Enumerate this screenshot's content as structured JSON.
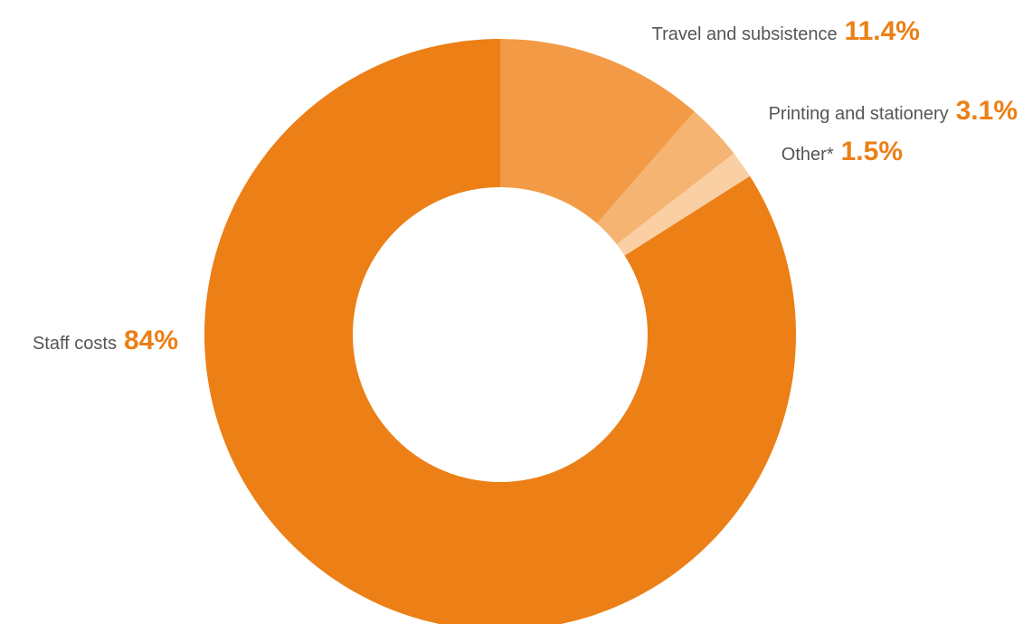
{
  "chart_data": {
    "type": "pie",
    "variant": "donut",
    "slices": [
      {
        "label": "Travel and subsistence",
        "value": 11.4,
        "value_label": "11.4%",
        "color": "#f29a45"
      },
      {
        "label": "Printing and stationery",
        "value": 3.1,
        "value_label": "3.1%",
        "color": "#f6b472"
      },
      {
        "label": "Other*",
        "value": 1.5,
        "value_label": "1.5%",
        "color": "#f9cfa3"
      },
      {
        "label": "Staff costs",
        "value": 84,
        "value_label": "84%",
        "color": "#ec7f16"
      }
    ],
    "label_value_color": "#ec7f16",
    "label_text_color": "#555555",
    "start_angle_deg": 0,
    "direction": "clockwise",
    "legend": "none"
  }
}
